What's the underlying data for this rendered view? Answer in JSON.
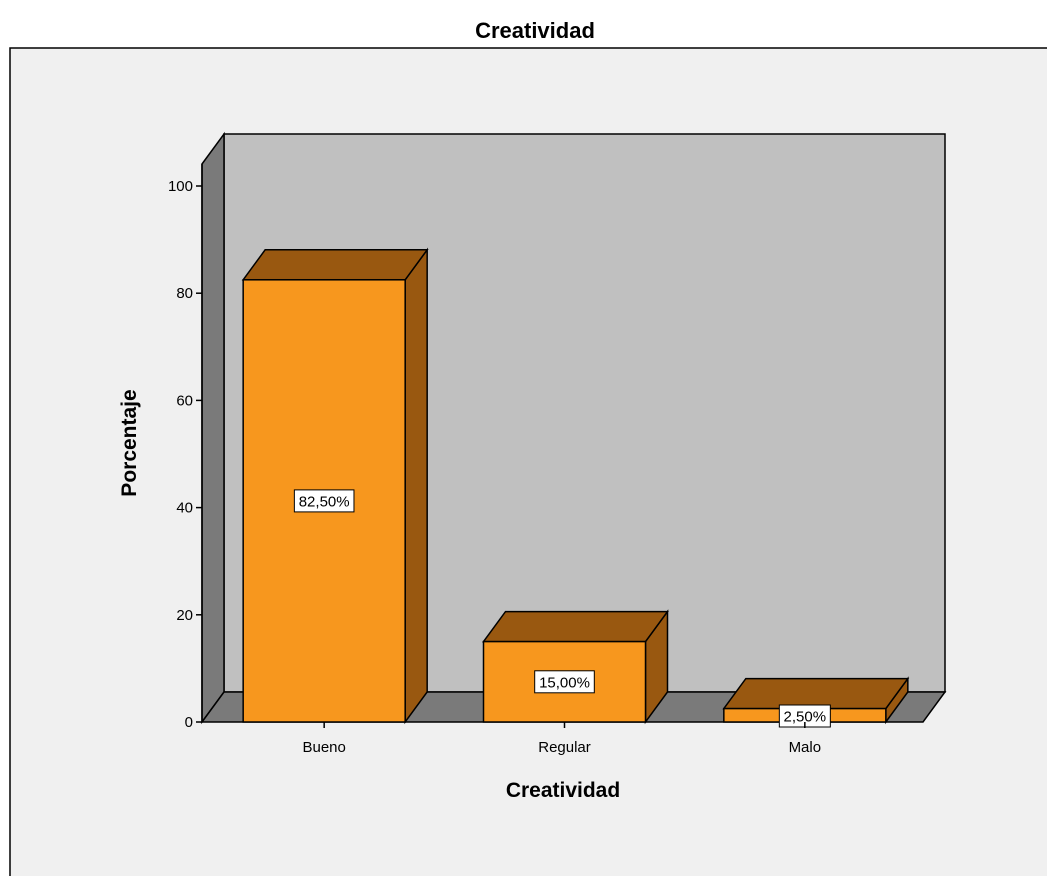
{
  "chart_data": {
    "type": "bar",
    "title": "Creatividad",
    "xlabel": "Creatividad",
    "ylabel": "Porcentaje",
    "categories": [
      "Bueno",
      "Regular",
      "Malo"
    ],
    "values": [
      82.5,
      15.0,
      2.5
    ],
    "data_labels": [
      "82,50%",
      "15,00%",
      "2,50%"
    ],
    "ylim": [
      0,
      100
    ],
    "y_ticks": [
      0,
      20,
      40,
      60,
      80,
      100
    ],
    "y_tick_labels": [
      "0",
      "20",
      "40",
      "60",
      "80",
      "100"
    ],
    "grid": false,
    "legend": "none",
    "style": "3d",
    "colors": {
      "bar_front": "#f7971e",
      "bar_top": "#995810",
      "bar_side": "#995810",
      "plot_back": "#c0c0c0",
      "plot_wall": "#7a7a7a",
      "plot_floor": "#7a7a7a",
      "panel_background": "#f0f0f0",
      "outline": "#000000"
    }
  }
}
